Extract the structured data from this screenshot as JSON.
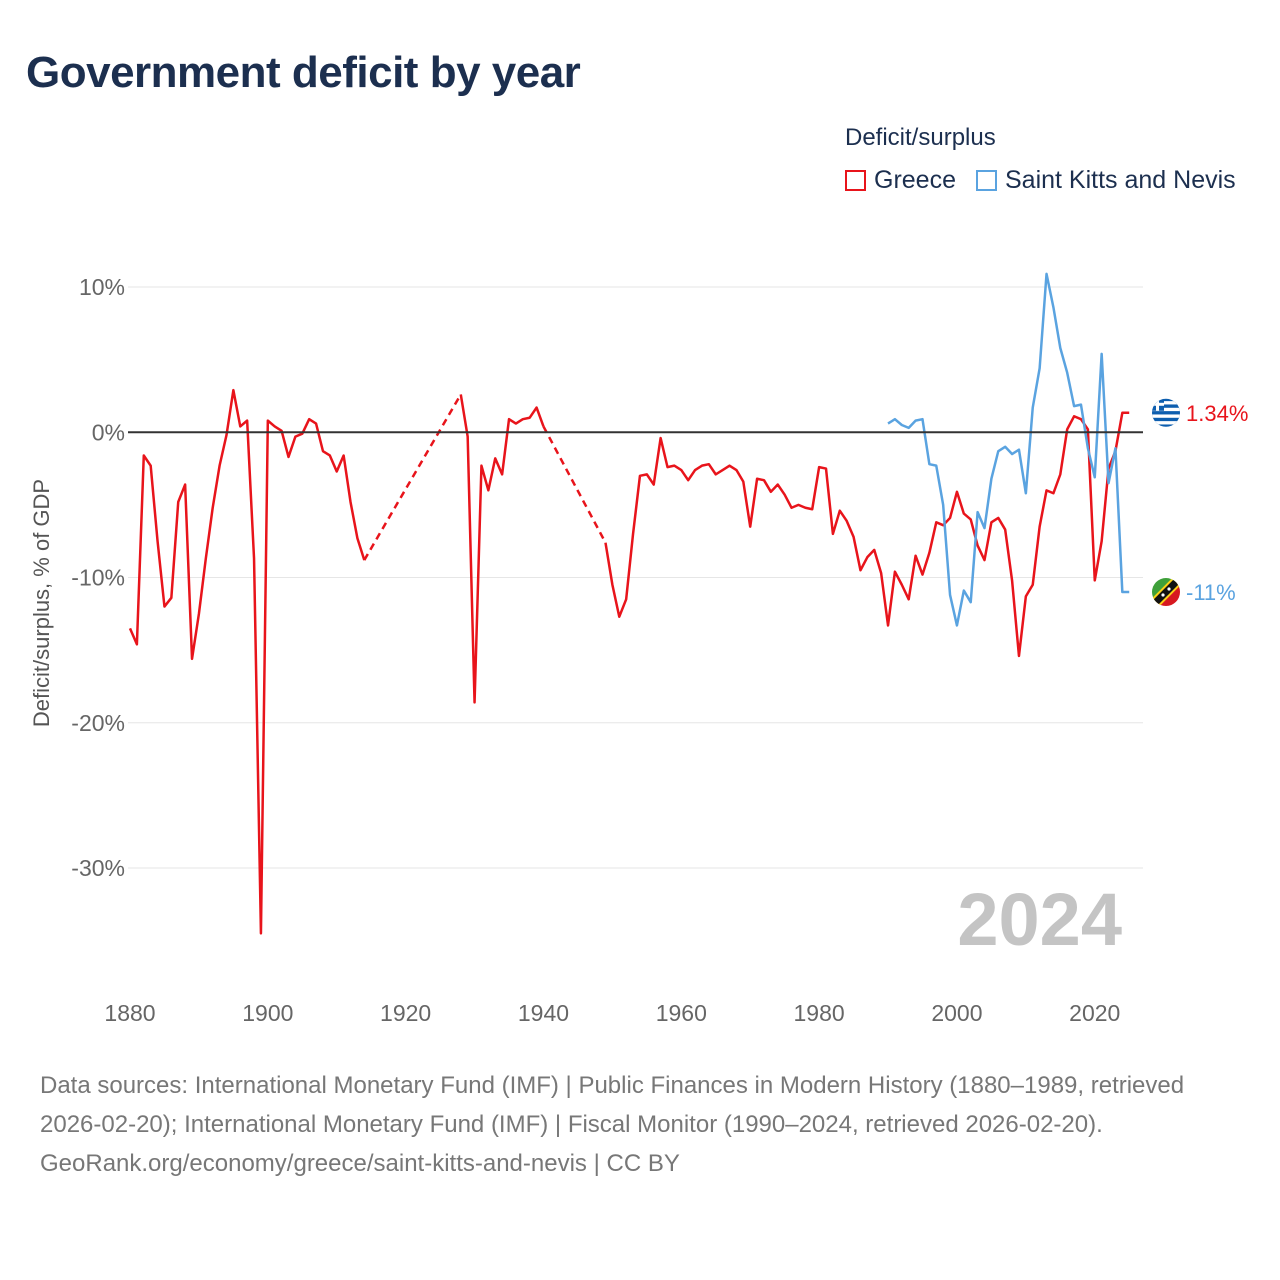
{
  "title": "Government deficit by year",
  "legend": {
    "title": "Deficit/surplus",
    "items": [
      {
        "label": "Greece",
        "color": "#e8141b"
      },
      {
        "label": "Saint Kitts and Nevis",
        "color": "#5aa3e0"
      }
    ]
  },
  "footer": {
    "sources": "Data sources: International Monetary Fund (IMF) | Public Finances in Modern History (1880–1989, retrieved 2026-02-20); International Monetary Fund (IMF) | Fiscal Monitor (1990–2024, retrieved 2026-02-20).",
    "credit": "GeoRank.org/economy/greece/saint-kitts-and-nevis | CC BY"
  },
  "chart_data": {
    "type": "line",
    "title": "Government deficit by year",
    "xlabel": "",
    "ylabel": "Deficit/surplus, % of GDP",
    "xlim": [
      1880,
      2027
    ],
    "ylim": [
      -38,
      12
    ],
    "x_ticks": [
      1880,
      1900,
      1920,
      1940,
      1960,
      1980,
      2000,
      2020
    ],
    "y_ticks": [
      10,
      0,
      -10,
      -20,
      -30
    ],
    "y_tick_labels": [
      "10%",
      "0%",
      "-10%",
      "-20%",
      "-30%"
    ],
    "year_stamp": "2024",
    "series": [
      {
        "name": "Greece",
        "color": "#e8141b",
        "end_label": "1.34%",
        "end_icon": "greece-flag-icon",
        "gaps": [
          [
            1912,
            1927
          ],
          [
            1938,
            1948
          ]
        ],
        "points": [
          [
            1880,
            -13.5
          ],
          [
            1881,
            -14.6
          ],
          [
            1882,
            -1.6
          ],
          [
            1883,
            -2.3
          ],
          [
            1884,
            -7.5
          ],
          [
            1885,
            -12.0
          ],
          [
            1886,
            -11.4
          ],
          [
            1887,
            -4.8
          ],
          [
            1888,
            -3.6
          ],
          [
            1889,
            -15.6
          ],
          [
            1890,
            -12.5
          ],
          [
            1891,
            -8.7
          ],
          [
            1892,
            -5.2
          ],
          [
            1893,
            -2.3
          ],
          [
            1894,
            -0.2
          ],
          [
            1895,
            2.9
          ],
          [
            1896,
            0.4
          ],
          [
            1897,
            0.8
          ],
          [
            1898,
            -8.7
          ],
          [
            1899,
            -34.5
          ],
          [
            1900,
            0.8
          ],
          [
            1901,
            0.4
          ],
          [
            1902,
            0.1
          ],
          [
            1903,
            -1.7
          ],
          [
            1904,
            -0.3
          ],
          [
            1905,
            -0.1
          ],
          [
            1906,
            0.9
          ],
          [
            1907,
            0.6
          ],
          [
            1908,
            -1.3
          ],
          [
            1909,
            -1.6
          ],
          [
            1910,
            -2.7
          ],
          [
            1911,
            -1.6
          ],
          [
            1912,
            -4.8
          ],
          [
            1913,
            -7.3
          ],
          [
            1914,
            -8.8
          ],
          [
            1928,
            2.6
          ],
          [
            1929,
            -0.3
          ],
          [
            1930,
            -18.6
          ],
          [
            1931,
            -2.3
          ],
          [
            1932,
            -4.0
          ],
          [
            1933,
            -1.8
          ],
          [
            1934,
            -2.9
          ],
          [
            1935,
            0.9
          ],
          [
            1936,
            0.6
          ],
          [
            1937,
            0.9
          ],
          [
            1938,
            1.0
          ],
          [
            1939,
            1.7
          ],
          [
            1940,
            0.4
          ],
          [
            1949,
            -7.6
          ],
          [
            1950,
            -10.5
          ],
          [
            1951,
            -12.7
          ],
          [
            1952,
            -11.5
          ],
          [
            1953,
            -7.0
          ],
          [
            1954,
            -3.0
          ],
          [
            1955,
            -2.9
          ],
          [
            1956,
            -3.6
          ],
          [
            1957,
            -0.4
          ],
          [
            1958,
            -2.4
          ],
          [
            1959,
            -2.3
          ],
          [
            1960,
            -2.6
          ],
          [
            1961,
            -3.3
          ],
          [
            1962,
            -2.6
          ],
          [
            1963,
            -2.3
          ],
          [
            1964,
            -2.2
          ],
          [
            1965,
            -2.9
          ],
          [
            1966,
            -2.6
          ],
          [
            1967,
            -2.3
          ],
          [
            1968,
            -2.6
          ],
          [
            1969,
            -3.4
          ],
          [
            1970,
            -6.5
          ],
          [
            1971,
            -3.2
          ],
          [
            1972,
            -3.3
          ],
          [
            1973,
            -4.1
          ],
          [
            1974,
            -3.6
          ],
          [
            1975,
            -4.3
          ],
          [
            1976,
            -5.2
          ],
          [
            1977,
            -5.0
          ],
          [
            1978,
            -5.2
          ],
          [
            1979,
            -5.3
          ],
          [
            1980,
            -2.4
          ],
          [
            1981,
            -2.5
          ],
          [
            1982,
            -7.0
          ],
          [
            1983,
            -5.4
          ],
          [
            1984,
            -6.1
          ],
          [
            1985,
            -7.2
          ],
          [
            1986,
            -9.5
          ],
          [
            1987,
            -8.6
          ],
          [
            1988,
            -8.1
          ],
          [
            1989,
            -9.7
          ],
          [
            1990,
            -13.3
          ],
          [
            1991,
            -9.6
          ],
          [
            1992,
            -10.5
          ],
          [
            1993,
            -11.5
          ],
          [
            1994,
            -8.5
          ],
          [
            1995,
            -9.8
          ],
          [
            1996,
            -8.3
          ],
          [
            1997,
            -6.2
          ],
          [
            1998,
            -6.4
          ],
          [
            1999,
            -5.9
          ],
          [
            2000,
            -4.1
          ],
          [
            2001,
            -5.6
          ],
          [
            2002,
            -6.0
          ],
          [
            2003,
            -7.8
          ],
          [
            2004,
            -8.8
          ],
          [
            2005,
            -6.2
          ],
          [
            2006,
            -5.9
          ],
          [
            2007,
            -6.7
          ],
          [
            2008,
            -10.2
          ],
          [
            2009,
            -15.4
          ],
          [
            2010,
            -11.3
          ],
          [
            2011,
            -10.5
          ],
          [
            2012,
            -6.5
          ],
          [
            2013,
            -4.0
          ],
          [
            2014,
            -4.2
          ],
          [
            2015,
            -2.9
          ],
          [
            2016,
            0.2
          ],
          [
            2017,
            1.1
          ],
          [
            2018,
            0.9
          ],
          [
            2019,
            0.2
          ],
          [
            2020,
            -10.2
          ],
          [
            2021,
            -7.5
          ],
          [
            2022,
            -2.5
          ],
          [
            2023,
            -1.3
          ],
          [
            2024,
            1.34
          ],
          [
            2025,
            1.34
          ]
        ]
      },
      {
        "name": "Saint Kitts and Nevis",
        "color": "#5aa3e0",
        "end_label": "-11%",
        "end_icon": "saint-kitts-and-nevis-flag-icon",
        "gaps": [],
        "points": [
          [
            1990,
            0.6
          ],
          [
            1991,
            0.9
          ],
          [
            1992,
            0.5
          ],
          [
            1993,
            0.3
          ],
          [
            1994,
            0.8
          ],
          [
            1995,
            0.9
          ],
          [
            1996,
            -2.2
          ],
          [
            1997,
            -2.3
          ],
          [
            1998,
            -5.0
          ],
          [
            1999,
            -11.2
          ],
          [
            2000,
            -13.3
          ],
          [
            2001,
            -10.9
          ],
          [
            2002,
            -11.7
          ],
          [
            2003,
            -5.5
          ],
          [
            2004,
            -6.6
          ],
          [
            2005,
            -3.2
          ],
          [
            2006,
            -1.3
          ],
          [
            2007,
            -1.0
          ],
          [
            2008,
            -1.5
          ],
          [
            2009,
            -1.2
          ],
          [
            2010,
            -4.2
          ],
          [
            2011,
            1.7
          ],
          [
            2012,
            4.4
          ],
          [
            2013,
            10.9
          ],
          [
            2014,
            8.6
          ],
          [
            2015,
            5.8
          ],
          [
            2016,
            4.1
          ],
          [
            2017,
            1.8
          ],
          [
            2018,
            1.9
          ],
          [
            2019,
            -1.1
          ],
          [
            2020,
            -3.1
          ],
          [
            2021,
            5.4
          ],
          [
            2022,
            -3.5
          ],
          [
            2023,
            -1.1
          ],
          [
            2024,
            -11.0
          ],
          [
            2025,
            -11.0
          ]
        ]
      }
    ]
  }
}
